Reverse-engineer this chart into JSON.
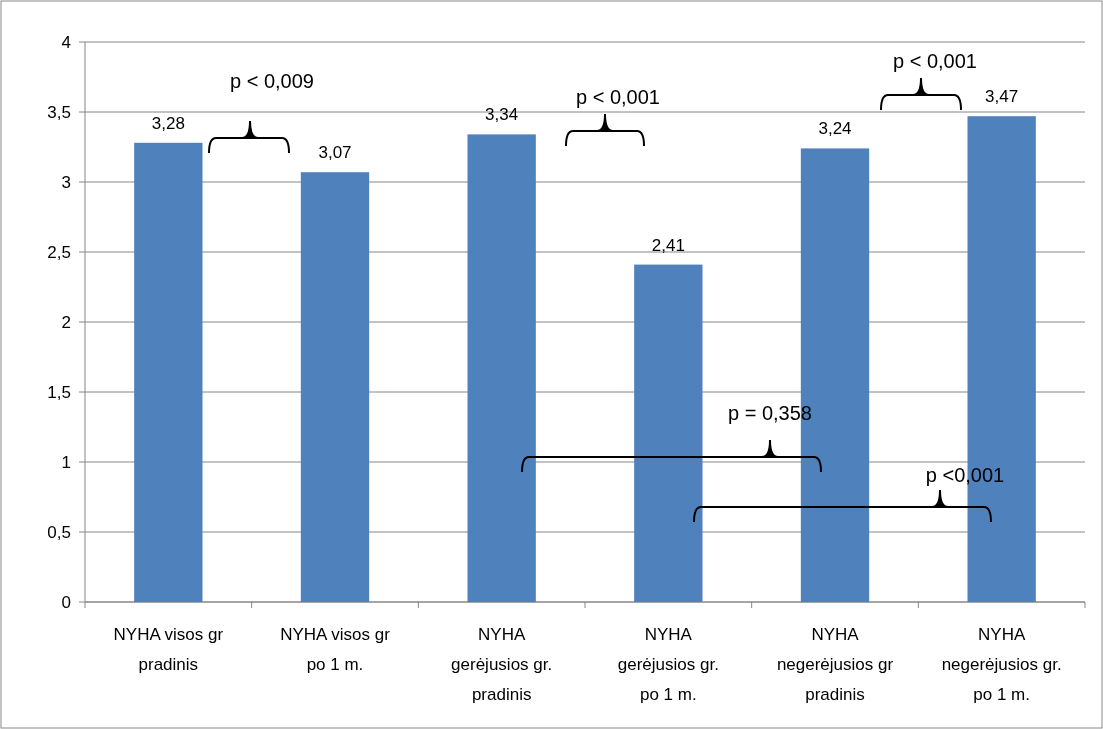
{
  "chart_data": {
    "type": "bar",
    "categories": [
      "NYHA visos gr pradinis",
      "NYHA visos gr po 1 m.",
      "NYHA gerėjusios gr. pradinis",
      "NYHA gerėjusios gr. po 1 m.",
      "NYHA negerėjusios gr pradinis",
      "NYHA negerėjusios gr. po 1 m."
    ],
    "values": [
      3.28,
      3.07,
      3.34,
      2.41,
      3.24,
      3.47
    ],
    "color": "#4f81bd",
    "ylim": [
      0,
      4
    ],
    "yticks": [
      0,
      {
        "value": 0.5,
        "label": "0,5"
      },
      1,
      {
        "value": 1.5,
        "label": "1,5"
      },
      2,
      {
        "value": 2.5,
        "label": "2,5"
      },
      3,
      {
        "value": 3.5,
        "label": "3,5"
      },
      4
    ],
    "grid": "y",
    "value_labels": [
      "3,28",
      "3,07",
      "3,34",
      "2,41",
      "3,24",
      "3,47"
    ],
    "annotations": [
      "p < 0,009",
      "p < 0,001",
      "p < 0,001",
      "p = 0,358",
      "p <0,001"
    ]
  }
}
